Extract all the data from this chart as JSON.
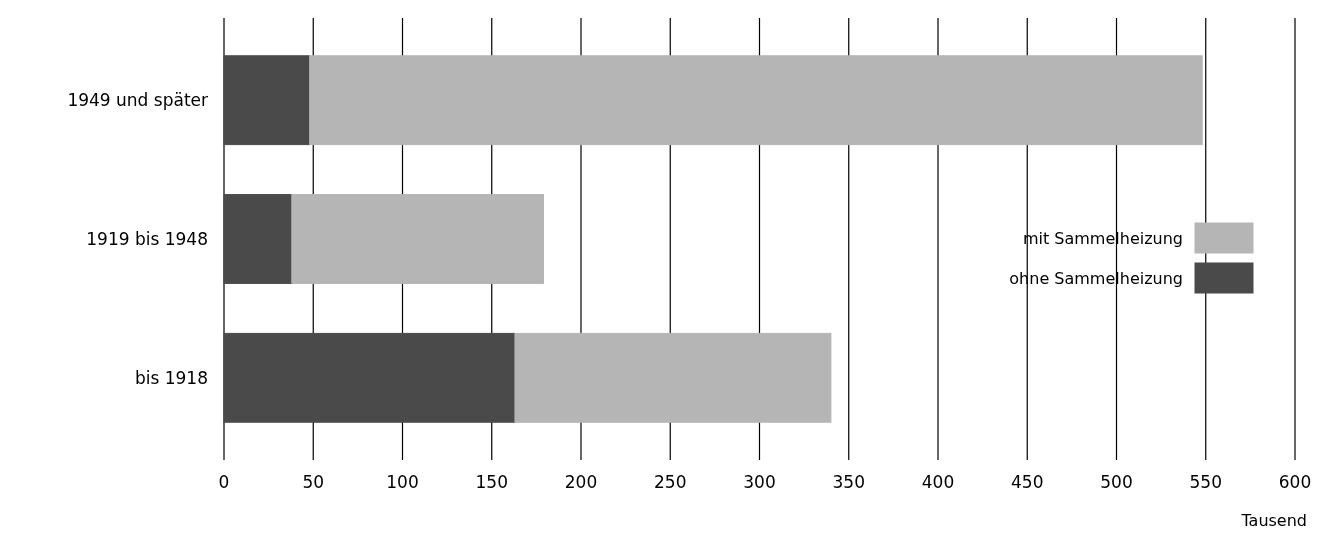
{
  "chart_data": {
    "type": "bar",
    "orientation": "horizontal",
    "stacked": true,
    "categories": [
      "1949 und später",
      "1919 bis 1948",
      "bis 1918"
    ],
    "series": [
      {
        "name": "ohne Sammelheizung",
        "color": "#4a4a4a",
        "values": [
          48,
          38,
          163
        ]
      },
      {
        "name": "mit Sammelheizung",
        "color": "#b5b5b5",
        "values": [
          500,
          141,
          177
        ]
      }
    ],
    "xlim": [
      0,
      600
    ],
    "xticks": [
      0,
      50,
      100,
      150,
      200,
      250,
      300,
      350,
      400,
      450,
      500,
      550,
      600
    ],
    "xlabel": "Tausend",
    "grid": "x",
    "legend": "right"
  }
}
